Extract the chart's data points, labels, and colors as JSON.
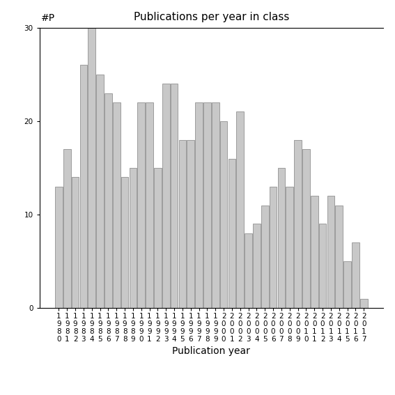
{
  "title": "Publications per year in class",
  "xlabel": "Publication year",
  "ylabel": "#P",
  "years": [
    "1980",
    "1981",
    "1982",
    "1983",
    "1984",
    "1985",
    "1986",
    "1987",
    "1988",
    "1989",
    "1990",
    "1991",
    "1992",
    "1993",
    "1994",
    "1995",
    "1996",
    "1997",
    "1998",
    "1999",
    "2000",
    "2001",
    "2002",
    "2003",
    "2004",
    "2005",
    "2006",
    "2007",
    "2008",
    "2009",
    "2010",
    "2011",
    "2012",
    "2013",
    "2014",
    "2015",
    "2016",
    "2017"
  ],
  "values": [
    13,
    17,
    14,
    26,
    30,
    25,
    23,
    22,
    14,
    15,
    22,
    22,
    15,
    24,
    24,
    18,
    18,
    22,
    22,
    22,
    20,
    16,
    21,
    8,
    9,
    11,
    13,
    15,
    13,
    18,
    17,
    12,
    9,
    12,
    11,
    5,
    7,
    1
  ],
  "bar_color": "#c8c8c8",
  "bar_edgecolor": "#808080",
  "ylim": [
    0,
    30
  ],
  "yticks": [
    0,
    10,
    20,
    30
  ],
  "bg_color": "#ffffff",
  "title_fontsize": 11,
  "label_fontsize": 10,
  "tick_fontsize": 7.5
}
